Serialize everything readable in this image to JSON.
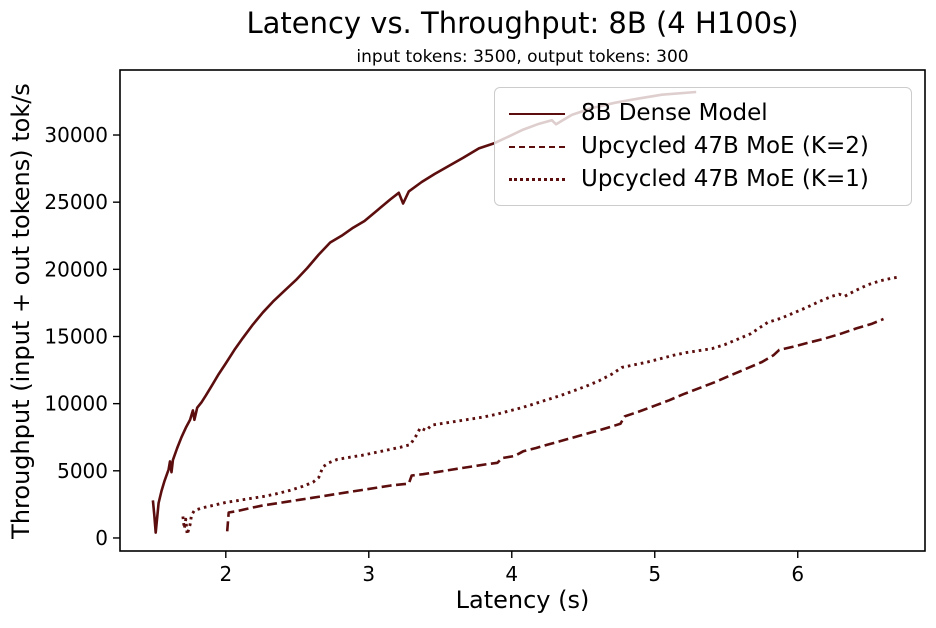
{
  "chart_data": {
    "type": "line",
    "title": "Latency vs. Throughput: 8B (4 H100s)",
    "subtitle": "input tokens: 3500, output tokens: 300",
    "xlabel": "Latency (s)",
    "ylabel": "Throughput (input + out tokens) tok/s",
    "xlim": [
      1.26,
      6.89
    ],
    "ylim": [
      -970,
      34840
    ],
    "x_ticks": [
      2,
      3,
      4,
      5,
      6
    ],
    "y_ticks": [
      0,
      5000,
      10000,
      15000,
      20000,
      25000,
      30000
    ],
    "grid": false,
    "legend_position": "upper right",
    "line_color": "#5c0e0e",
    "series": [
      {
        "name": "8B Dense Model",
        "style": "solid",
        "color": "#5c0e0e",
        "points": [
          [
            1.49,
            2800
          ],
          [
            1.5,
            1700
          ],
          [
            1.51,
            400
          ],
          [
            1.53,
            2600
          ],
          [
            1.55,
            3500
          ],
          [
            1.57,
            4200
          ],
          [
            1.6,
            5100
          ],
          [
            1.61,
            5700
          ],
          [
            1.62,
            4900
          ],
          [
            1.63,
            5800
          ],
          [
            1.66,
            6700
          ],
          [
            1.69,
            7500
          ],
          [
            1.72,
            8200
          ],
          [
            1.75,
            8800
          ],
          [
            1.77,
            9500
          ],
          [
            1.78,
            8800
          ],
          [
            1.8,
            9700
          ],
          [
            1.83,
            10100
          ],
          [
            1.86,
            10600
          ],
          [
            1.9,
            11300
          ],
          [
            1.95,
            12200
          ],
          [
            2.0,
            13000
          ],
          [
            2.06,
            14000
          ],
          [
            2.12,
            14900
          ],
          [
            2.19,
            15900
          ],
          [
            2.26,
            16800
          ],
          [
            2.33,
            17600
          ],
          [
            2.41,
            18400
          ],
          [
            2.49,
            19200
          ],
          [
            2.57,
            20100
          ],
          [
            2.65,
            21100
          ],
          [
            2.73,
            22000
          ],
          [
            2.81,
            22500
          ],
          [
            2.89,
            23100
          ],
          [
            2.97,
            23600
          ],
          [
            3.06,
            24400
          ],
          [
            3.15,
            25200
          ],
          [
            3.21,
            25700
          ],
          [
            3.24,
            24900
          ],
          [
            3.28,
            25800
          ],
          [
            3.37,
            26500
          ],
          [
            3.46,
            27100
          ],
          [
            3.56,
            27700
          ],
          [
            3.66,
            28300
          ],
          [
            3.77,
            29000
          ],
          [
            3.88,
            29400
          ],
          [
            3.98,
            29900
          ],
          [
            4.08,
            30400
          ],
          [
            4.18,
            30800
          ],
          [
            4.28,
            31100
          ],
          [
            4.31,
            30800
          ],
          [
            4.42,
            31500
          ],
          [
            4.56,
            32000
          ],
          [
            4.72,
            32400
          ],
          [
            4.88,
            32700
          ],
          [
            5.05,
            33000
          ],
          [
            5.29,
            33200
          ]
        ]
      },
      {
        "name": "Upcycled 47B MoE (K=2)",
        "style": "dashed",
        "color": "#5c0e0e",
        "points": [
          [
            2.01,
            500
          ],
          [
            2.02,
            1900
          ],
          [
            2.08,
            2000
          ],
          [
            2.16,
            2200
          ],
          [
            2.25,
            2400
          ],
          [
            2.34,
            2550
          ],
          [
            2.43,
            2700
          ],
          [
            2.52,
            2850
          ],
          [
            2.61,
            3000
          ],
          [
            2.7,
            3150
          ],
          [
            2.79,
            3300
          ],
          [
            2.88,
            3450
          ],
          [
            2.97,
            3600
          ],
          [
            3.06,
            3750
          ],
          [
            3.15,
            3900
          ],
          [
            3.24,
            4000
          ],
          [
            3.28,
            4050
          ],
          [
            3.3,
            4650
          ],
          [
            3.38,
            4750
          ],
          [
            3.47,
            4900
          ],
          [
            3.56,
            5050
          ],
          [
            3.65,
            5200
          ],
          [
            3.74,
            5350
          ],
          [
            3.83,
            5500
          ],
          [
            3.9,
            5600
          ],
          [
            3.93,
            5950
          ],
          [
            4.02,
            6100
          ],
          [
            4.08,
            6450
          ],
          [
            4.17,
            6700
          ],
          [
            4.27,
            7000
          ],
          [
            4.37,
            7300
          ],
          [
            4.47,
            7600
          ],
          [
            4.57,
            7900
          ],
          [
            4.67,
            8200
          ],
          [
            4.76,
            8500
          ],
          [
            4.79,
            9050
          ],
          [
            4.9,
            9450
          ],
          [
            5.0,
            9850
          ],
          [
            5.1,
            10250
          ],
          [
            5.2,
            10700
          ],
          [
            5.31,
            11150
          ],
          [
            5.42,
            11600
          ],
          [
            5.53,
            12100
          ],
          [
            5.64,
            12600
          ],
          [
            5.75,
            13100
          ],
          [
            5.83,
            13600
          ],
          [
            5.87,
            14000
          ],
          [
            5.97,
            14250
          ],
          [
            6.08,
            14550
          ],
          [
            6.19,
            14850
          ],
          [
            6.3,
            15200
          ],
          [
            6.41,
            15600
          ],
          [
            6.52,
            15950
          ],
          [
            6.6,
            16300
          ]
        ]
      },
      {
        "name": "Upcycled 47B MoE (K=1)",
        "style": "dotted",
        "color": "#5c0e0e",
        "points": [
          [
            1.7,
            1600
          ],
          [
            1.71,
            700
          ],
          [
            1.72,
            1400
          ],
          [
            1.73,
            250
          ],
          [
            1.75,
            1000
          ],
          [
            1.76,
            1700
          ],
          [
            1.78,
            2050
          ],
          [
            1.84,
            2250
          ],
          [
            1.92,
            2450
          ],
          [
            2.0,
            2650
          ],
          [
            2.09,
            2800
          ],
          [
            2.18,
            2950
          ],
          [
            2.27,
            3100
          ],
          [
            2.36,
            3300
          ],
          [
            2.45,
            3550
          ],
          [
            2.54,
            3850
          ],
          [
            2.61,
            4150
          ],
          [
            2.65,
            4500
          ],
          [
            2.68,
            5300
          ],
          [
            2.72,
            5600
          ],
          [
            2.78,
            5850
          ],
          [
            2.86,
            6000
          ],
          [
            2.95,
            6150
          ],
          [
            3.04,
            6350
          ],
          [
            3.13,
            6550
          ],
          [
            3.22,
            6750
          ],
          [
            3.29,
            6950
          ],
          [
            3.33,
            7600
          ],
          [
            3.36,
            8200
          ],
          [
            3.4,
            8000
          ],
          [
            3.44,
            8400
          ],
          [
            3.53,
            8550
          ],
          [
            3.62,
            8700
          ],
          [
            3.71,
            8850
          ],
          [
            3.8,
            9000
          ],
          [
            3.89,
            9200
          ],
          [
            3.98,
            9450
          ],
          [
            4.07,
            9700
          ],
          [
            4.16,
            10000
          ],
          [
            4.25,
            10300
          ],
          [
            4.34,
            10600
          ],
          [
            4.43,
            10950
          ],
          [
            4.52,
            11300
          ],
          [
            4.61,
            11700
          ],
          [
            4.7,
            12200
          ],
          [
            4.77,
            12700
          ],
          [
            4.86,
            12900
          ],
          [
            4.95,
            13100
          ],
          [
            5.04,
            13350
          ],
          [
            5.13,
            13600
          ],
          [
            5.22,
            13800
          ],
          [
            5.31,
            13950
          ],
          [
            5.4,
            14100
          ],
          [
            5.49,
            14400
          ],
          [
            5.58,
            14800
          ],
          [
            5.67,
            15200
          ],
          [
            5.74,
            15700
          ],
          [
            5.79,
            16050
          ],
          [
            5.88,
            16350
          ],
          [
            5.97,
            16750
          ],
          [
            6.06,
            17150
          ],
          [
            6.15,
            17600
          ],
          [
            6.24,
            18000
          ],
          [
            6.29,
            18150
          ],
          [
            6.33,
            18000
          ],
          [
            6.4,
            18400
          ],
          [
            6.49,
            18850
          ],
          [
            6.58,
            19150
          ],
          [
            6.66,
            19350
          ],
          [
            6.71,
            19430
          ]
        ]
      }
    ]
  },
  "colors": {
    "line": "#5c0e0e",
    "axis": "#000000",
    "legend_border": "#cccccc",
    "legend_background": "rgba(255,255,255,0.8)"
  }
}
